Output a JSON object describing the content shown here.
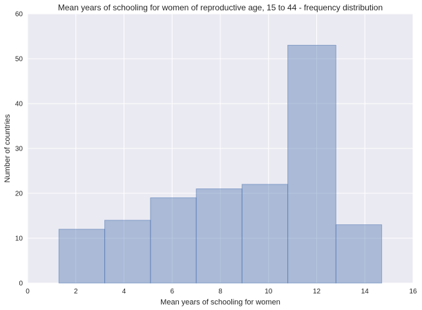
{
  "chart_data": {
    "type": "bar",
    "subtype": "histogram",
    "title": "Mean years of schooling for women of reproductive age, 15 to 44 - frequency distribution",
    "xlabel": "Mean years of schooling for women",
    "ylabel": "Number of countries",
    "xlim": [
      0,
      16
    ],
    "ylim": [
      0,
      60
    ],
    "xticks": [
      0,
      2,
      4,
      6,
      8,
      10,
      12,
      14,
      16
    ],
    "yticks": [
      0,
      10,
      20,
      30,
      40,
      50,
      60
    ],
    "bins": [
      {
        "start": 1.3,
        "end": 3.2,
        "value": 12
      },
      {
        "start": 3.2,
        "end": 5.1,
        "value": 14
      },
      {
        "start": 5.1,
        "end": 7.0,
        "value": 19
      },
      {
        "start": 7.0,
        "end": 8.9,
        "value": 21
      },
      {
        "start": 8.9,
        "end": 10.8,
        "value": 22
      },
      {
        "start": 10.8,
        "end": 12.8,
        "value": 53
      },
      {
        "start": 12.8,
        "end": 14.7,
        "value": 13
      }
    ],
    "grid": true,
    "colors": {
      "background": "#eaeaf2",
      "grid": "#ffffff",
      "bar_fill": "#4c72b0",
      "bar_edge": "#4c72b0"
    }
  }
}
